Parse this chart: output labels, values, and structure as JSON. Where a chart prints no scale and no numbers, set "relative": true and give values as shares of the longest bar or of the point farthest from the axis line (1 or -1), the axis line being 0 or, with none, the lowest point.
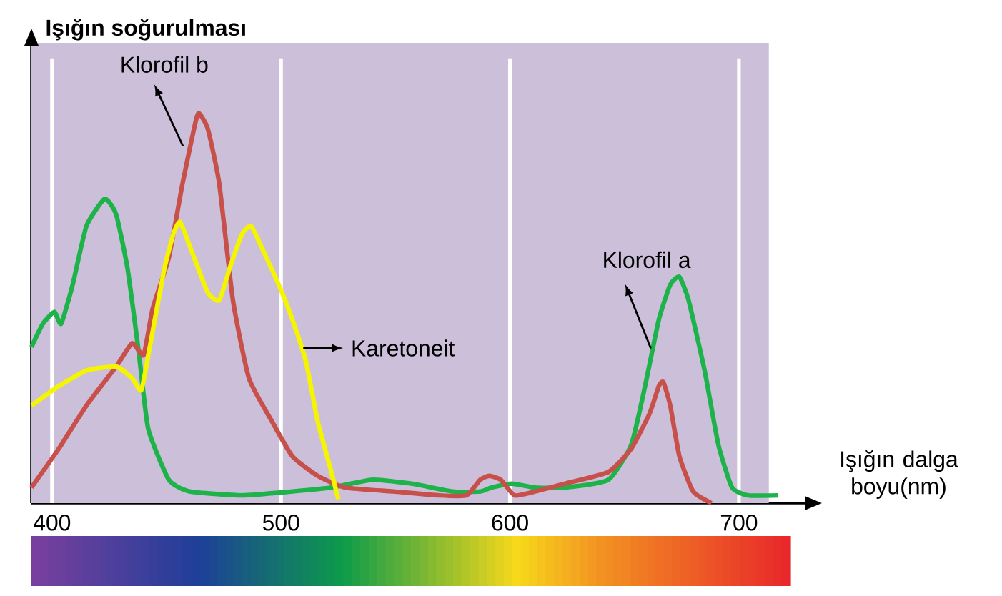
{
  "chart_data": {
    "type": "line",
    "relative": true,
    "ylabel": "Işığın soğurulması",
    "xlabel": "Işığın dalga boyu(nm)",
    "xlim": [
      391,
      730
    ],
    "xticks": [
      400,
      500,
      600,
      700
    ],
    "grid": "x",
    "legend": false,
    "marker": "none",
    "series": [
      {
        "name": "Klorofil a",
        "color": "#1db34a",
        "x": [
          391,
          396,
          401,
          404,
          409,
          415,
          423,
          428,
          433,
          438,
          442,
          451,
          460,
          483,
          505,
          522,
          540,
          557,
          575,
          587,
          592,
          601,
          611,
          624,
          643,
          653,
          659,
          665,
          670,
          674,
          678,
          685,
          691,
          697,
          704,
          717
        ],
        "values": [
          0.4,
          0.46,
          0.49,
          0.46,
          0.56,
          0.71,
          0.78,
          0.74,
          0.6,
          0.38,
          0.19,
          0.06,
          0.03,
          0.02,
          0.03,
          0.04,
          0.06,
          0.05,
          0.03,
          0.03,
          0.04,
          0.05,
          0.04,
          0.04,
          0.06,
          0.15,
          0.3,
          0.47,
          0.56,
          0.58,
          0.52,
          0.34,
          0.15,
          0.04,
          0.02,
          0.02
        ]
      },
      {
        "name": "Klorofil b",
        "color": "#c8504a",
        "x": [
          391,
          403,
          415,
          428,
          435,
          440,
          444,
          451,
          457,
          462,
          464,
          468,
          473,
          479,
          486,
          496,
          505,
          516,
          528,
          549,
          569,
          581,
          587,
          591,
          596,
          602,
          611,
          624,
          643,
          653,
          661,
          665,
          667,
          670,
          674,
          680,
          688
        ],
        "values": [
          0.04,
          0.14,
          0.25,
          0.35,
          0.41,
          0.38,
          0.5,
          0.63,
          0.82,
          0.96,
          1.0,
          0.96,
          0.82,
          0.52,
          0.32,
          0.21,
          0.12,
          0.07,
          0.04,
          0.03,
          0.02,
          0.02,
          0.06,
          0.07,
          0.06,
          0.02,
          0.03,
          0.05,
          0.08,
          0.14,
          0.23,
          0.3,
          0.31,
          0.25,
          0.12,
          0.03,
          0.0
        ]
      },
      {
        "name": "Karetoneit",
        "color": "#f5f500",
        "x": [
          391,
          403,
          415,
          428,
          435,
          439,
          443,
          449,
          453,
          456,
          462,
          468,
          473,
          478,
          483,
          487,
          492,
          499,
          505,
          511,
          516,
          522,
          525
        ],
        "values": [
          0.25,
          0.3,
          0.34,
          0.35,
          0.32,
          0.29,
          0.41,
          0.6,
          0.69,
          0.72,
          0.63,
          0.54,
          0.52,
          0.61,
          0.69,
          0.71,
          0.65,
          0.56,
          0.47,
          0.36,
          0.21,
          0.08,
          0.01
        ]
      }
    ]
  }
}
